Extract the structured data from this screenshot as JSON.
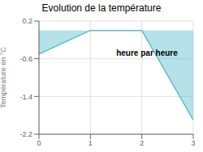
{
  "chart_data": {
    "type": "area",
    "title": "Evolution de la température",
    "xlabel": "heure par heure",
    "ylabel": "Température en °C",
    "x": [
      0,
      1,
      2,
      3
    ],
    "values": [
      -0.5,
      0.0,
      0.0,
      -1.9
    ],
    "color": "#5bbccc",
    "xlim": [
      0,
      3
    ],
    "ylim": [
      -2.2,
      0.2
    ],
    "xticks": [
      0,
      1,
      2,
      3
    ],
    "yticks": [
      0.2,
      -0.6,
      -1.4,
      -2.2
    ],
    "grid": true
  }
}
